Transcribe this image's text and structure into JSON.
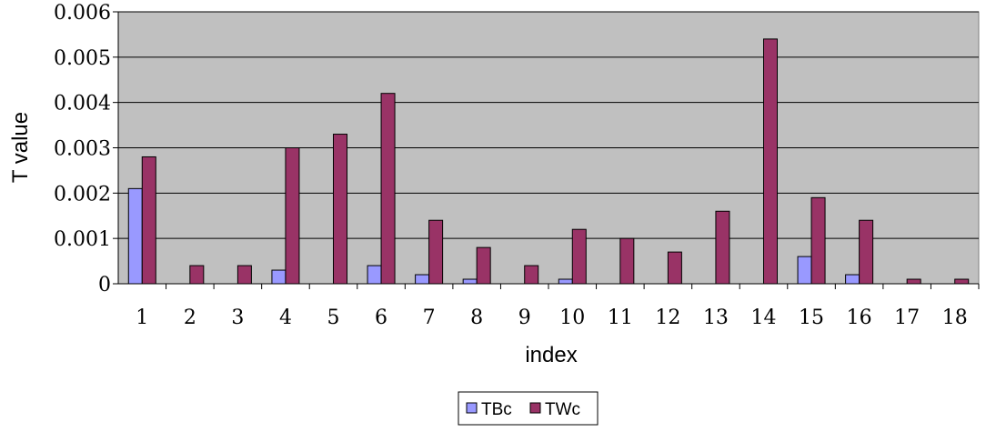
{
  "chart_data": {
    "type": "bar",
    "xlabel": "index",
    "ylabel": "T value",
    "ylim": [
      0,
      0.006
    ],
    "yticks": [
      "0",
      "0.001",
      "0.002",
      "0.003",
      "0.004",
      "0.005",
      "0.006"
    ],
    "categories": [
      "1",
      "2",
      "3",
      "4",
      "5",
      "6",
      "7",
      "8",
      "9",
      "10",
      "11",
      "12",
      "13",
      "14",
      "15",
      "16",
      "17",
      "18"
    ],
    "series": [
      {
        "name": "TBc",
        "color": "#9999ff",
        "values": [
          0.0021,
          0,
          0,
          0.0003,
          0,
          0.0004,
          0.0002,
          0.0001,
          0,
          0.0001,
          0,
          0,
          0,
          0,
          0.0006,
          0.0002,
          0,
          0
        ]
      },
      {
        "name": "TWc",
        "color": "#993366",
        "values": [
          0.0028,
          0.0004,
          0.0004,
          0.003,
          0.0033,
          0.0042,
          0.0014,
          0.0008,
          0.0004,
          0.0012,
          0.001,
          0.0007,
          0.0016,
          0.0054,
          0.0019,
          0.0014,
          0.0001,
          0.0001
        ]
      }
    ],
    "grid": true,
    "plot_background": "#c0c0c0",
    "legend": "bottom"
  }
}
